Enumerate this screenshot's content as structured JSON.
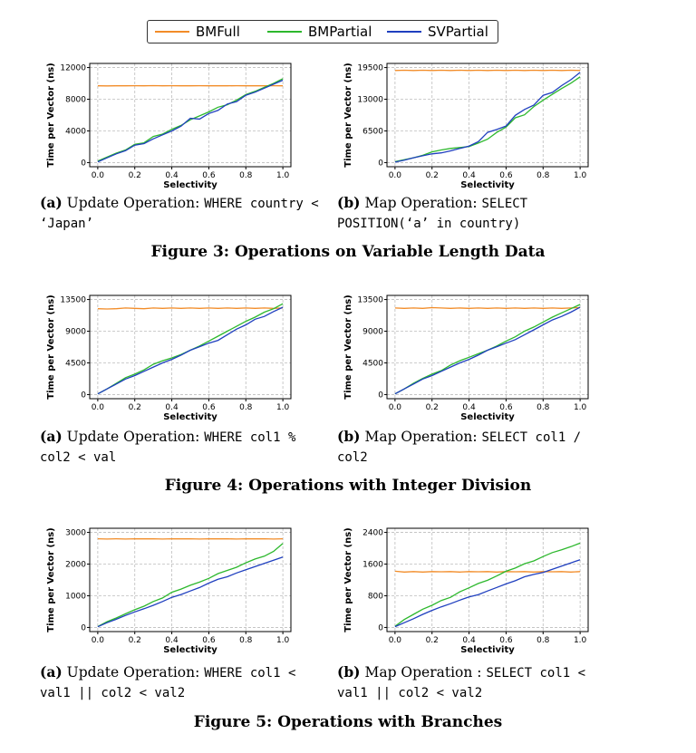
{
  "legend": {
    "items": [
      {
        "label": "BMFull",
        "color": "#f28c28"
      },
      {
        "label": "BMPartial",
        "color": "#2db82d"
      },
      {
        "label": "SVPartial",
        "color": "#1f3fbf"
      }
    ]
  },
  "figures": [
    {
      "title": "Figure 3: Operations on Variable Length Data",
      "captions": [
        {
          "label": "(a)",
          "text": "Update Operation:",
          "code": "WHERE country < ‘Japan’"
        },
        {
          "label": "(b)",
          "text": "Map Operation:",
          "code": "SELECT POSITION(‘a’ in country)"
        }
      ]
    },
    {
      "title": "Figure 4: Operations with Integer Division",
      "captions": [
        {
          "label": "(a)",
          "text": "Update Operation:",
          "code": "WHERE col1 % col2 < val"
        },
        {
          "label": "(b)",
          "text": "Map Operation:",
          "code": "SELECT col1 / col2"
        }
      ]
    },
    {
      "title": "Figure 5: Operations with Branches",
      "captions": [
        {
          "label": "(a)",
          "text": "Update Operation:",
          "code": "WHERE col1 < val1 || col2 < val2"
        },
        {
          "label": "(b)",
          "text": "Map Operation :",
          "code": "SELECT col1 < val1 || col2 < val2"
        }
      ]
    }
  ],
  "chart_data": [
    {
      "type": "line",
      "xlabel": "Selectivity",
      "ylabel": "Time per Vector (ns)",
      "xlim": [
        0,
        1
      ],
      "ylim": [
        0,
        12000
      ],
      "grid": true,
      "xticks": [
        "0.0",
        "0.2",
        "0.4",
        "0.6",
        "0.8",
        "1.0"
      ],
      "yticks": [
        "0",
        "4000",
        "8000",
        "12000"
      ],
      "x": [
        0,
        0.05,
        0.1,
        0.15,
        0.2,
        0.25,
        0.3,
        0.35,
        0.4,
        0.45,
        0.5,
        0.55,
        0.6,
        0.65,
        0.7,
        0.75,
        0.8,
        0.85,
        0.9,
        0.95,
        1.0
      ],
      "series": [
        {
          "name": "BMFull",
          "values": [
            9700,
            9680,
            9700,
            9690,
            9710,
            9700,
            9720,
            9700,
            9710,
            9690,
            9700,
            9710,
            9700,
            9690,
            9700,
            9710,
            9700,
            9690,
            9700,
            9710,
            9700
          ]
        },
        {
          "name": "BMPartial",
          "values": [
            200,
            700,
            1200,
            1600,
            2300,
            2500,
            3300,
            3600,
            4200,
            4700,
            5400,
            5900,
            6400,
            7000,
            7300,
            7900,
            8600,
            9000,
            9500,
            10000,
            10600
          ]
        },
        {
          "name": "SVPartial",
          "values": [
            100,
            600,
            1100,
            1500,
            2200,
            2400,
            3000,
            3500,
            4000,
            4600,
            5600,
            5500,
            6200,
            6600,
            7400,
            7700,
            8500,
            8900,
            9400,
            9900,
            10400
          ]
        }
      ]
    },
    {
      "type": "line",
      "xlabel": "Selectivity",
      "ylabel": "Time per Vector (ns)",
      "xlim": [
        0,
        1
      ],
      "ylim": [
        0,
        19500
      ],
      "grid": true,
      "xticks": [
        "0.0",
        "0.2",
        "0.4",
        "0.6",
        "0.8",
        "1.0"
      ],
      "yticks": [
        "0",
        "6500",
        "13000",
        "19500"
      ],
      "x": [
        0,
        0.05,
        0.1,
        0.15,
        0.2,
        0.25,
        0.3,
        0.35,
        0.4,
        0.45,
        0.5,
        0.55,
        0.6,
        0.65,
        0.7,
        0.75,
        0.8,
        0.85,
        0.9,
        0.95,
        1.0
      ],
      "series": [
        {
          "name": "BMFull",
          "values": [
            18900,
            18950,
            18900,
            18950,
            18900,
            18950,
            18900,
            18950,
            18900,
            18950,
            18900,
            18950,
            18900,
            18950,
            18900,
            18950,
            18900,
            18950,
            18900,
            18950,
            18900
          ]
        },
        {
          "name": "BMPartial",
          "values": [
            200,
            600,
            1000,
            1500,
            2200,
            2600,
            2900,
            3100,
            3300,
            4000,
            4800,
            6200,
            7300,
            9200,
            9800,
            11500,
            12800,
            14000,
            15200,
            16300,
            17600
          ]
        },
        {
          "name": "SVPartial",
          "values": [
            100,
            500,
            1000,
            1400,
            1800,
            2000,
            2400,
            2900,
            3400,
            4300,
            6200,
            6800,
            7500,
            9700,
            10900,
            11800,
            13800,
            14400,
            15800,
            17000,
            18500
          ]
        }
      ]
    },
    {
      "type": "line",
      "xlabel": "Selectivity",
      "ylabel": "Time per Vector (ns)",
      "xlim": [
        0,
        1
      ],
      "ylim": [
        0,
        13500
      ],
      "grid": true,
      "xticks": [
        "0.0",
        "0.2",
        "0.4",
        "0.6",
        "0.8",
        "1.0"
      ],
      "yticks": [
        "0",
        "4500",
        "9000",
        "13500"
      ],
      "x": [
        0,
        0.05,
        0.1,
        0.15,
        0.2,
        0.25,
        0.3,
        0.35,
        0.4,
        0.45,
        0.5,
        0.55,
        0.6,
        0.65,
        0.7,
        0.75,
        0.8,
        0.85,
        0.9,
        0.95,
        1.0
      ],
      "series": [
        {
          "name": "BMFull",
          "values": [
            12200,
            12150,
            12200,
            12300,
            12250,
            12200,
            12300,
            12250,
            12300,
            12250,
            12300,
            12250,
            12300,
            12250,
            12300,
            12250,
            12300,
            12250,
            12300,
            12250,
            12300
          ]
        },
        {
          "name": "BMPartial",
          "values": [
            100,
            800,
            1600,
            2400,
            2900,
            3500,
            4300,
            4800,
            5200,
            5700,
            6300,
            6900,
            7600,
            8300,
            9000,
            9700,
            10400,
            11000,
            11700,
            12200,
            12900
          ]
        },
        {
          "name": "SVPartial",
          "values": [
            100,
            800,
            1500,
            2200,
            2700,
            3300,
            3900,
            4500,
            5000,
            5600,
            6300,
            6800,
            7300,
            7700,
            8500,
            9300,
            9900,
            10700,
            11100,
            11800,
            12400
          ]
        }
      ]
    },
    {
      "type": "line",
      "xlabel": "Selectivity",
      "ylabel": "Time per Vector (ns)",
      "xlim": [
        0,
        1
      ],
      "ylim": [
        0,
        13500
      ],
      "grid": true,
      "xticks": [
        "0.0",
        "0.2",
        "0.4",
        "0.6",
        "0.8",
        "1.0"
      ],
      "yticks": [
        "0",
        "4500",
        "9000",
        "13500"
      ],
      "x": [
        0,
        0.05,
        0.1,
        0.15,
        0.2,
        0.25,
        0.3,
        0.35,
        0.4,
        0.45,
        0.5,
        0.55,
        0.6,
        0.65,
        0.7,
        0.75,
        0.8,
        0.85,
        0.9,
        0.95,
        1.0
      ],
      "series": [
        {
          "name": "BMFull",
          "values": [
            12300,
            12250,
            12300,
            12250,
            12350,
            12300,
            12250,
            12300,
            12250,
            12300,
            12250,
            12300,
            12250,
            12300,
            12250,
            12300,
            12250,
            12300,
            12250,
            12300,
            12350
          ]
        },
        {
          "name": "BMPartial",
          "values": [
            100,
            800,
            1600,
            2300,
            2900,
            3400,
            4200,
            4800,
            5300,
            5800,
            6300,
            6900,
            7600,
            8200,
            9000,
            9600,
            10300,
            11000,
            11600,
            12200,
            12800
          ]
        },
        {
          "name": "SVPartial",
          "values": [
            100,
            800,
            1500,
            2200,
            2700,
            3300,
            3900,
            4500,
            5000,
            5600,
            6300,
            6800,
            7300,
            7800,
            8500,
            9200,
            9900,
            10600,
            11100,
            11700,
            12400
          ]
        }
      ]
    },
    {
      "type": "line",
      "xlabel": "Selectivity",
      "ylabel": "Time per Vector (ns)",
      "xlim": [
        0,
        1
      ],
      "ylim": [
        0,
        3000
      ],
      "grid": true,
      "xticks": [
        "0.0",
        "0.2",
        "0.4",
        "0.6",
        "0.8",
        "1.0"
      ],
      "yticks": [
        "0",
        "1000",
        "2000",
        "3000"
      ],
      "x": [
        0,
        0.05,
        0.1,
        0.15,
        0.2,
        0.25,
        0.3,
        0.35,
        0.4,
        0.45,
        0.5,
        0.55,
        0.6,
        0.65,
        0.7,
        0.75,
        0.8,
        0.85,
        0.9,
        0.95,
        1.0
      ],
      "series": [
        {
          "name": "BMFull",
          "values": [
            2800,
            2790,
            2800,
            2790,
            2800,
            2795,
            2800,
            2790,
            2800,
            2795,
            2800,
            2790,
            2800,
            2795,
            2800,
            2790,
            2800,
            2795,
            2800,
            2790,
            2800
          ]
        },
        {
          "name": "BMPartial",
          "values": [
            30,
            180,
            300,
            430,
            560,
            670,
            820,
            930,
            1110,
            1210,
            1330,
            1430,
            1550,
            1700,
            1800,
            1900,
            2040,
            2160,
            2250,
            2400,
            2650
          ]
        },
        {
          "name": "SVPartial",
          "values": [
            20,
            150,
            260,
            380,
            490,
            590,
            700,
            820,
            950,
            1040,
            1150,
            1260,
            1400,
            1520,
            1600,
            1720,
            1820,
            1920,
            2020,
            2120,
            2220
          ]
        }
      ]
    },
    {
      "type": "line",
      "xlabel": "Selectivity",
      "ylabel": "Time per Vector (ns)",
      "xlim": [
        0,
        1
      ],
      "ylim": [
        0,
        2400
      ],
      "grid": true,
      "xticks": [
        "0.0",
        "0.2",
        "0.4",
        "0.6",
        "0.8",
        "1.0"
      ],
      "yticks": [
        "0",
        "800",
        "1600",
        "2400"
      ],
      "x": [
        0,
        0.05,
        0.1,
        0.15,
        0.2,
        0.25,
        0.3,
        0.35,
        0.4,
        0.45,
        0.5,
        0.55,
        0.6,
        0.65,
        0.7,
        0.75,
        0.8,
        0.85,
        0.9,
        0.95,
        1.0
      ],
      "series": [
        {
          "name": "BMFull",
          "values": [
            1420,
            1400,
            1410,
            1400,
            1410,
            1405,
            1410,
            1400,
            1410,
            1405,
            1410,
            1400,
            1410,
            1405,
            1410,
            1400,
            1410,
            1405,
            1410,
            1400,
            1410
          ]
        },
        {
          "name": "BMPartial",
          "values": [
            30,
            200,
            330,
            460,
            560,
            680,
            760,
            900,
            1000,
            1110,
            1190,
            1300,
            1420,
            1500,
            1610,
            1680,
            1790,
            1890,
            1960,
            2040,
            2130
          ]
        },
        {
          "name": "SVPartial",
          "values": [
            20,
            120,
            220,
            330,
            430,
            520,
            600,
            690,
            770,
            830,
            920,
            1010,
            1100,
            1180,
            1280,
            1340,
            1390,
            1470,
            1550,
            1630,
            1710
          ]
        }
      ]
    }
  ]
}
